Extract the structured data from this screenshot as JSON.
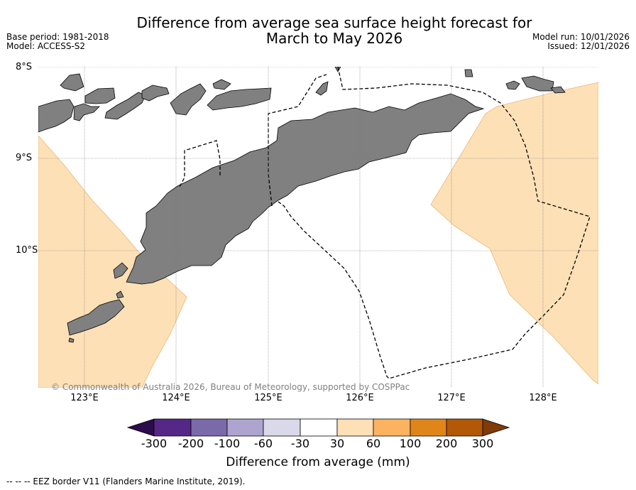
{
  "title_line1": "Difference from average sea surface height forecast for",
  "title_line2": "March to May 2026",
  "base_period": "Base period: 1981-2018",
  "model": "Model: ACCESS-S2",
  "model_run": "Model run: 10/01/2026",
  "issued": "Issued: 12/01/2026",
  "lat_labels": [
    "8°S",
    "9°S",
    "10°S"
  ],
  "lon_labels": [
    "123°E",
    "124°E",
    "125°E",
    "126°E",
    "127°E",
    "128°E"
  ],
  "copyright": "© Commonwealth of Australia 2026, Bureau of Meteorology, supported by COSPPac",
  "colorbar": {
    "title": "Difference from average (mm)",
    "tick_labels": [
      "-300",
      "-200",
      "-100",
      "-60",
      "-30",
      "30",
      "60",
      "100",
      "200",
      "300"
    ],
    "colors": {
      "below_min": "#2d0c4b",
      "bins": [
        "#552887",
        "#7b6aa9",
        "#ada5cf",
        "#d9d9ea",
        "#ffffff",
        "#fde0b6",
        "#fbb360",
        "#e08619",
        "#b35807"
      ],
      "above_max": "#7f3b08"
    }
  },
  "map_colors": {
    "land": "#808080",
    "positive_anomaly_30_60": "#fde0b6"
  },
  "legend_note": "-- -- -- EEZ border V11 (Flanders Marine Institute, 2019)."
}
